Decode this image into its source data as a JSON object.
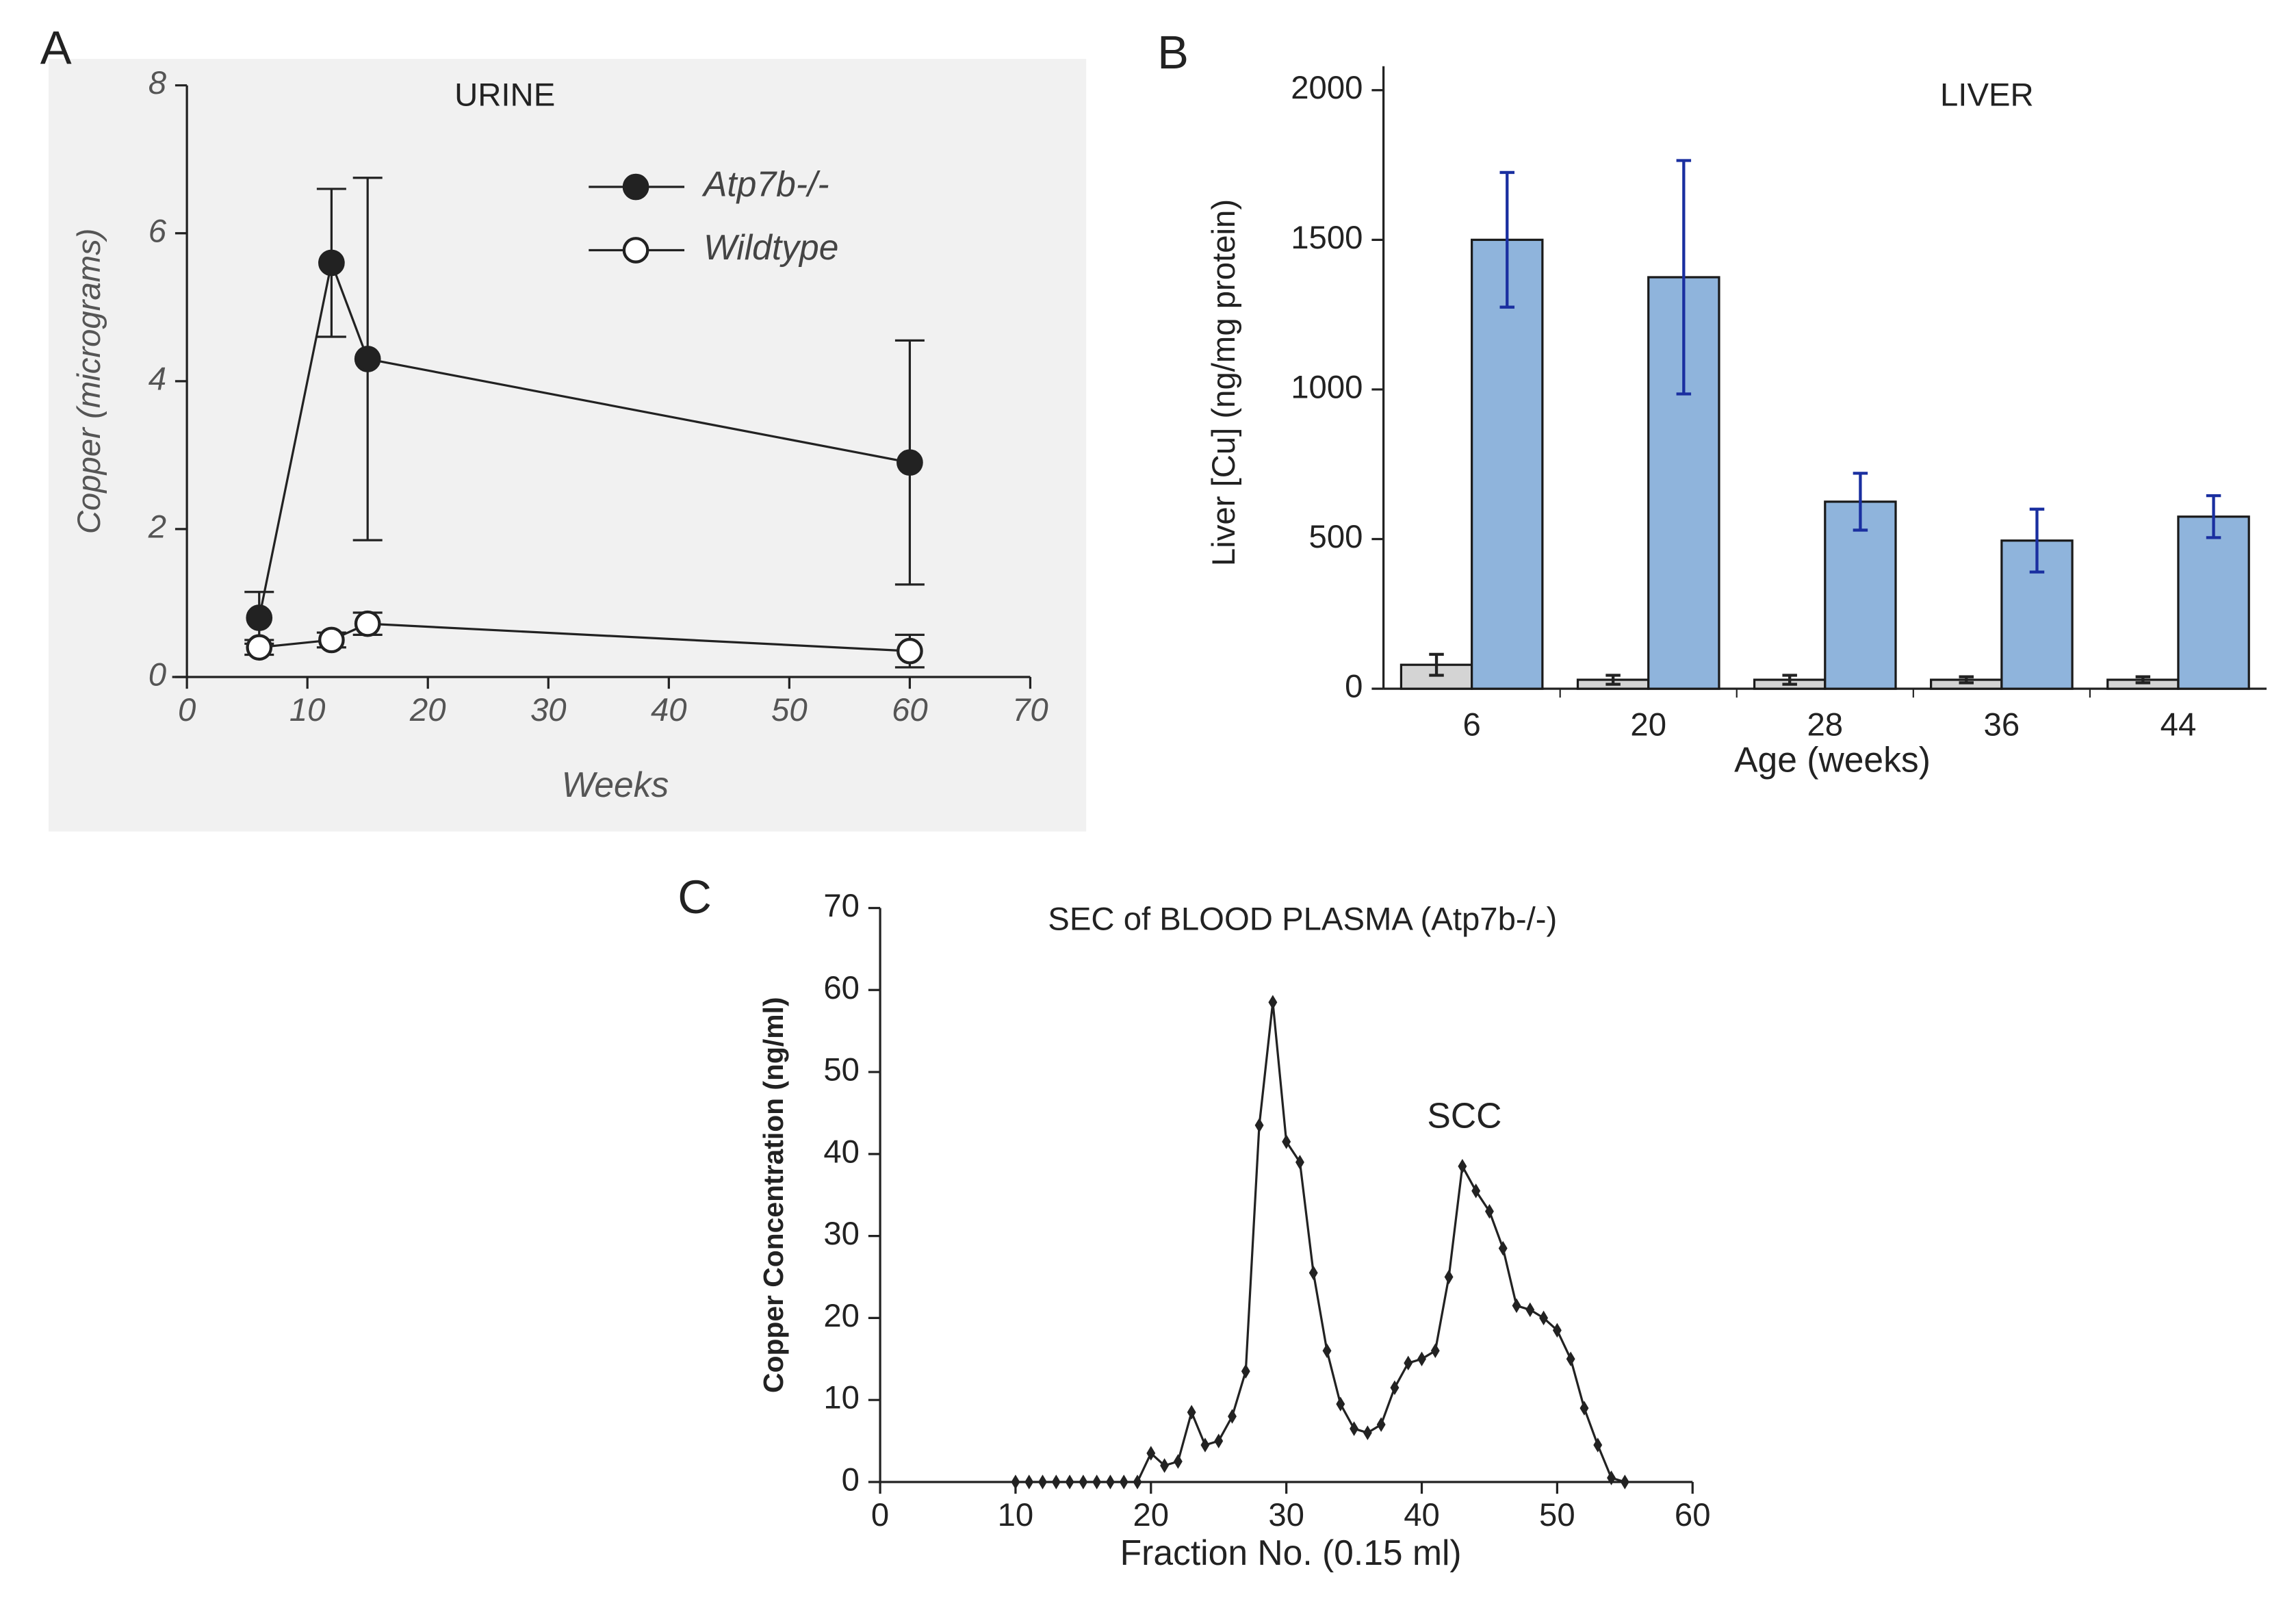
{
  "chart_data": [
    {
      "type": "line",
      "panel_label": "A",
      "title": "URINE",
      "xlabel": "Weeks",
      "ylabel": "Copper (micrograms)",
      "x": [
        6,
        12,
        15,
        60
      ],
      "series": [
        {
          "name": "Atp7b-/-",
          "color": "#222222",
          "marker_face": "#222222",
          "values": [
            0.8,
            5.6,
            4.3,
            2.9
          ],
          "errors": [
            0.35,
            1.0,
            2.45,
            1.65
          ]
        },
        {
          "name": "Wildtype",
          "color": "#222222",
          "marker_face": "#ffffff",
          "values": [
            0.4,
            0.5,
            0.72,
            0.35
          ],
          "errors": [
            0.1,
            0.1,
            0.15,
            0.22
          ]
        }
      ],
      "xlim": [
        0,
        70
      ],
      "xticks": [
        0,
        10,
        20,
        30,
        40,
        50,
        60,
        70
      ],
      "ylim": [
        0,
        8
      ],
      "yticks": [
        0,
        2,
        4,
        6,
        8
      ],
      "background": "#f1f1f1"
    },
    {
      "type": "bar",
      "panel_label": "B",
      "title": "LIVER",
      "xlabel": "Age (weeks)",
      "ylabel": "Liver [Cu]  (ng/mg protein)",
      "categories": [
        "6",
        "20",
        "28",
        "36",
        "44"
      ],
      "series": [
        {
          "color": "#d4d4d4",
          "error_color": "#222222",
          "values": [
            80,
            30,
            30,
            30,
            30
          ],
          "errors": [
            35,
            15,
            15,
            10,
            10
          ]
        },
        {
          "color": "#8fb4dc",
          "error_color": "#1a2fa0",
          "values": [
            1500,
            1375,
            625,
            495,
            575
          ],
          "errors": [
            225,
            390,
            95,
            105,
            70
          ]
        }
      ],
      "ylim": [
        0,
        2080
      ],
      "yticks": [
        0,
        500,
        1000,
        1500,
        2000
      ]
    },
    {
      "type": "line",
      "panel_label": "C",
      "title": "SEC of BLOOD PLASMA (Atp7b-/-)",
      "annotation": "SCC",
      "xlabel": "Fraction No. (0.15 ml)",
      "ylabel": "Copper Concentration (ng/ml)",
      "x": [
        10,
        11,
        12,
        13,
        14,
        15,
        16,
        17,
        18,
        19,
        20,
        21,
        22,
        23,
        24,
        25,
        26,
        27,
        28,
        29,
        30,
        31,
        32,
        33,
        34,
        35,
        36,
        37,
        38,
        39,
        40,
        41,
        42,
        43,
        44,
        45,
        46,
        47,
        48,
        49,
        50,
        51,
        52,
        53,
        54,
        55
      ],
      "series": [
        {
          "color": "#222222",
          "marker_face": "#222222",
          "values": [
            0,
            0,
            0,
            0,
            0,
            0,
            0,
            0,
            0,
            0,
            3.5,
            2,
            2.5,
            8.5,
            4.5,
            5,
            8,
            13.5,
            43.5,
            58.5,
            41.5,
            39,
            25.5,
            16,
            9.5,
            6.5,
            6,
            7,
            11.5,
            14.5,
            15,
            16,
            25,
            38.5,
            35.5,
            33,
            28.5,
            21.5,
            21,
            20,
            18.5,
            15,
            9,
            4.5,
            0.5,
            0
          ]
        }
      ],
      "xlim": [
        0,
        60
      ],
      "xticks": [
        0,
        10,
        20,
        30,
        40,
        50,
        60
      ],
      "ylim": [
        0,
        70
      ],
      "yticks": [
        0,
        10,
        20,
        30,
        40,
        50,
        60,
        70
      ]
    }
  ]
}
